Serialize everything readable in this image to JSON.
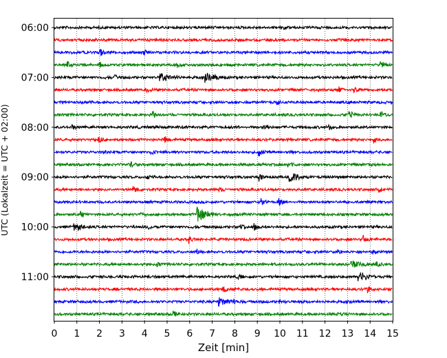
{
  "chart_data": {
    "type": "line",
    "title": "",
    "xlabel": "Zeit  [min]",
    "ylabel": "UTC (Lokalzeit = UTC + 02:00)",
    "xlim": [
      0,
      15
    ],
    "x_ticks": [
      "0",
      "1",
      "2",
      "3",
      "4",
      "5",
      "6",
      "7",
      "8",
      "9",
      "10",
      "11",
      "12",
      "13",
      "14",
      "15"
    ],
    "y_tick_labels": [
      "06:00",
      "07:00",
      "08:00",
      "09:00",
      "10:00",
      "11:00"
    ],
    "trace_interval_minutes": 15,
    "start_time": "06:00",
    "end_time": "11:45",
    "grid": "vertical dotted lines at each minute",
    "colors": [
      "#000000",
      "#ff0000",
      "#0000ff",
      "#008000"
    ],
    "traces": [
      {
        "start": "06:00",
        "color": "#000000",
        "events": [
          [
            10.1,
            3
          ]
        ]
      },
      {
        "start": "06:15",
        "color": "#ff0000",
        "events": []
      },
      {
        "start": "06:30",
        "color": "#0000ff",
        "events": [
          [
            2.05,
            6
          ],
          [
            4.0,
            4
          ]
        ]
      },
      {
        "start": "06:45",
        "color": "#008000",
        "events": [
          [
            0.6,
            5
          ],
          [
            2.0,
            5
          ],
          [
            5.45,
            5
          ],
          [
            14.5,
            6
          ]
        ]
      },
      {
        "start": "07:00",
        "color": "#000000",
        "events": [
          [
            4.7,
            7
          ],
          [
            6.7,
            8
          ],
          [
            2.7,
            3
          ]
        ]
      },
      {
        "start": "07:15",
        "color": "#ff0000",
        "events": [
          [
            4.1,
            5
          ],
          [
            12.6,
            5
          ],
          [
            13.3,
            5
          ]
        ]
      },
      {
        "start": "07:30",
        "color": "#0000ff",
        "events": [
          [
            9.9,
            3
          ]
        ]
      },
      {
        "start": "07:45",
        "color": "#008000",
        "events": [
          [
            13.1,
            6
          ],
          [
            14.5,
            5
          ],
          [
            4.4,
            4
          ]
        ]
      },
      {
        "start": "08:00",
        "color": "#000000",
        "events": [
          [
            0.8,
            4
          ],
          [
            9.3,
            6
          ],
          [
            12.2,
            3
          ]
        ]
      },
      {
        "start": "08:15",
        "color": "#ff0000",
        "events": [
          [
            2.0,
            5
          ],
          [
            4.9,
            5
          ],
          [
            14.2,
            4
          ]
        ]
      },
      {
        "start": "08:30",
        "color": "#0000ff",
        "events": [
          [
            2.1,
            3
          ],
          [
            4.3,
            4
          ],
          [
            9.1,
            5
          ]
        ]
      },
      {
        "start": "08:45",
        "color": "#008000",
        "events": [
          [
            3.4,
            5
          ],
          [
            10.4,
            5
          ],
          [
            14.0,
            3
          ]
        ]
      },
      {
        "start": "09:00",
        "color": "#000000",
        "events": [
          [
            10.45,
            10
          ],
          [
            9.1,
            5
          ],
          [
            4.1,
            3
          ]
        ]
      },
      {
        "start": "09:15",
        "color": "#ff0000",
        "events": [
          [
            3.5,
            5
          ],
          [
            7.3,
            4
          ],
          [
            14.4,
            5
          ]
        ]
      },
      {
        "start": "09:30",
        "color": "#0000ff",
        "events": [
          [
            9.2,
            5
          ],
          [
            10.0,
            5
          ]
        ]
      },
      {
        "start": "09:45",
        "color": "#008000",
        "events": [
          [
            6.35,
            14
          ],
          [
            1.2,
            3
          ],
          [
            3.8,
            3
          ]
        ]
      },
      {
        "start": "10:00",
        "color": "#000000",
        "events": [
          [
            0.9,
            7
          ],
          [
            4.2,
            3
          ],
          [
            8.3,
            4
          ],
          [
            8.9,
            5
          ]
        ]
      },
      {
        "start": "10:15",
        "color": "#ff0000",
        "events": [
          [
            6.0,
            6
          ],
          [
            13.7,
            5
          ]
        ]
      },
      {
        "start": "10:30",
        "color": "#0000ff",
        "events": [
          [
            6.3,
            4
          ],
          [
            12.6,
            4
          ],
          [
            14.1,
            3
          ]
        ]
      },
      {
        "start": "10:45",
        "color": "#008000",
        "events": [
          [
            13.2,
            7
          ],
          [
            4.6,
            4
          ],
          [
            14.3,
            4
          ]
        ]
      },
      {
        "start": "11:00",
        "color": "#000000",
        "events": [
          [
            13.5,
            9
          ],
          [
            8.2,
            3
          ]
        ]
      },
      {
        "start": "11:15",
        "color": "#ff0000",
        "events": [
          [
            7.5,
            6
          ],
          [
            13.9,
            5
          ]
        ]
      },
      {
        "start": "11:30",
        "color": "#0000ff",
        "events": [
          [
            7.3,
            7
          ],
          [
            8.0,
            4
          ],
          [
            10.0,
            3
          ]
        ]
      },
      {
        "start": "11:45",
        "color": "#008000",
        "events": [
          [
            5.3,
            4
          ],
          [
            12.6,
            3
          ]
        ]
      }
    ]
  }
}
